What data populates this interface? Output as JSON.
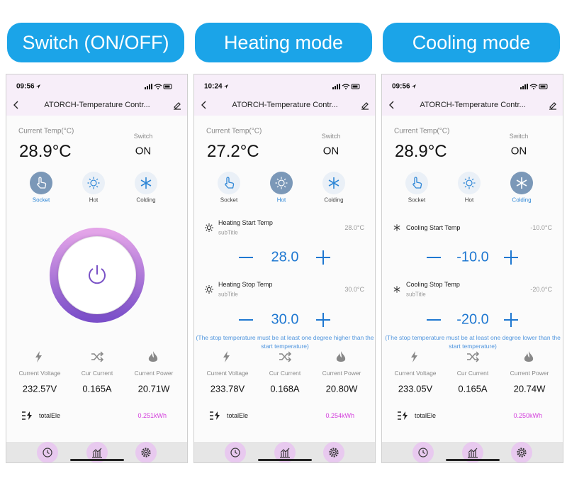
{
  "panels": [
    {
      "banner": "Switch (ON/OFF)",
      "time": "09:56",
      "app_title": "ATORCH-Temperature Contr...",
      "current_temp_label": "Current Temp(°C)",
      "current_temp": "28.9°C",
      "switch_label": "Switch",
      "switch_state": "ON",
      "modes": [
        "Socket",
        "Hot",
        "Colding"
      ],
      "active_mode": 0,
      "metrics": [
        {
          "label": "Current Voltage",
          "value": "232.57V"
        },
        {
          "label": "Cur Current",
          "value": "0.165A"
        },
        {
          "label": "Current Power",
          "value": "20.71W"
        }
      ],
      "total_label": "totalEle",
      "total_value": "0.251kWh"
    },
    {
      "banner": "Heating mode",
      "time": "10:24",
      "app_title": "ATORCH-Temperature Contr...",
      "current_temp_label": "Current Temp(°C)",
      "current_temp": "27.2°C",
      "switch_label": "Switch",
      "switch_state": "ON",
      "modes": [
        "Socket",
        "Hot",
        "Colding"
      ],
      "active_mode": 1,
      "settings": [
        {
          "label": "Heating Start Temp",
          "subtitle": "subTitle",
          "value": "28.0°C",
          "setpoint": "28.0"
        },
        {
          "label": "Heating Stop Temp",
          "subtitle": "subTitle",
          "value": "30.0°C",
          "setpoint": "30.0"
        }
      ],
      "note": "(The stop temperature must be at least one degree higher than the start temperature)",
      "metrics": [
        {
          "label": "Current Voltage",
          "value": "233.78V"
        },
        {
          "label": "Cur Current",
          "value": "0.168A"
        },
        {
          "label": "Current Power",
          "value": "20.80W"
        }
      ],
      "total_label": "totalEle",
      "total_value": "0.254kWh"
    },
    {
      "banner": "Cooling mode",
      "time": "09:56",
      "app_title": "ATORCH-Temperature Contr...",
      "current_temp_label": "Current Temp(°C)",
      "current_temp": "28.9°C",
      "switch_label": "Switch",
      "switch_state": "ON",
      "modes": [
        "Socket",
        "Hot",
        "Colding"
      ],
      "active_mode": 2,
      "settings": [
        {
          "label": "Cooling Start Temp",
          "value": "-10.0°C",
          "setpoint": "-10.0"
        },
        {
          "label": "Cooling Stop Temp",
          "subtitle": "subTitle",
          "value": "-20.0°C",
          "setpoint": "-20.0"
        }
      ],
      "note": "(The stop temperature must be at least one degree lower than the start temperature)",
      "metrics": [
        {
          "label": "Current Voltage",
          "value": "233.05V"
        },
        {
          "label": "Cur Current",
          "value": "0.165A"
        },
        {
          "label": "Current Power",
          "value": "20.74W"
        }
      ],
      "total_label": "totalEle",
      "total_value": "0.250kWh"
    }
  ]
}
